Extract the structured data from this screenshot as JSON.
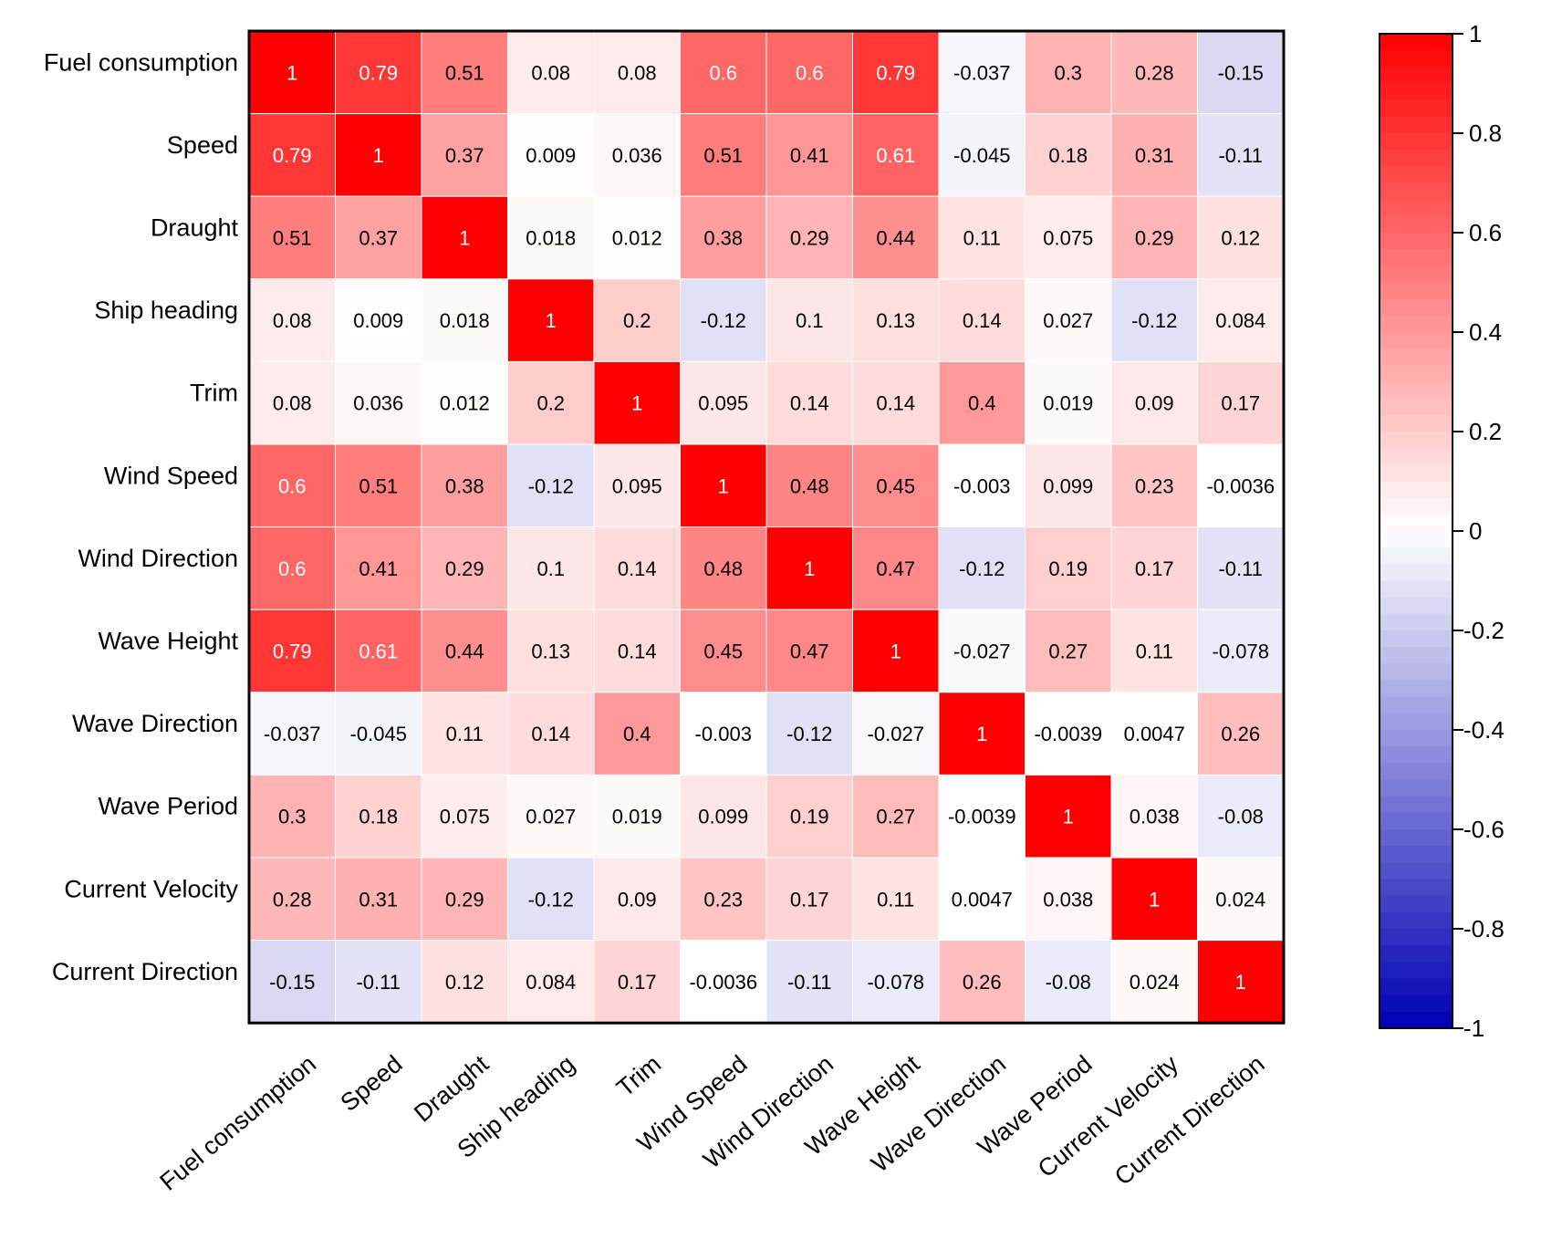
{
  "chart_data": {
    "type": "heatmap",
    "title": "",
    "xlabel": "",
    "ylabel": "",
    "variables": [
      "Fuel consumption",
      "Speed",
      "Draught",
      "Ship heading",
      "Trim",
      "Wind Speed",
      "Wind Direction",
      "Wave Height",
      "Wave Direction",
      "Wave Period",
      "Current Velocity",
      "Current Direction"
    ],
    "values": [
      [
        1,
        0.79,
        0.51,
        0.08,
        0.08,
        0.6,
        0.6,
        0.79,
        -0.037,
        0.3,
        0.28,
        -0.15
      ],
      [
        0.79,
        1,
        0.37,
        0.009,
        0.036,
        0.51,
        0.41,
        0.61,
        -0.045,
        0.18,
        0.31,
        -0.11
      ],
      [
        0.51,
        0.37,
        1,
        0.018,
        0.012,
        0.38,
        0.29,
        0.44,
        0.11,
        0.075,
        0.29,
        0.12
      ],
      [
        0.08,
        0.009,
        0.018,
        1,
        0.2,
        -0.12,
        0.1,
        0.13,
        0.14,
        0.027,
        -0.12,
        0.084
      ],
      [
        0.08,
        0.036,
        0.012,
        0.2,
        1,
        0.095,
        0.14,
        0.14,
        0.4,
        0.019,
        0.09,
        0.17
      ],
      [
        0.6,
        0.51,
        0.38,
        -0.12,
        0.095,
        1,
        0.48,
        0.45,
        -0.003,
        0.099,
        0.23,
        -0.0036
      ],
      [
        0.6,
        0.41,
        0.29,
        0.1,
        0.14,
        0.48,
        1,
        0.47,
        -0.12,
        0.19,
        0.17,
        -0.11
      ],
      [
        0.79,
        0.61,
        0.44,
        0.13,
        0.14,
        0.45,
        0.47,
        1,
        -0.027,
        0.27,
        0.11,
        -0.078
      ],
      [
        -0.037,
        -0.045,
        0.11,
        0.14,
        0.4,
        -0.003,
        -0.12,
        -0.027,
        1,
        -0.0039,
        0.0047,
        0.26
      ],
      [
        0.3,
        0.18,
        0.075,
        0.027,
        0.019,
        0.099,
        0.19,
        0.27,
        -0.0039,
        1,
        0.038,
        -0.08
      ],
      [
        0.28,
        0.31,
        0.29,
        -0.12,
        0.09,
        0.23,
        0.17,
        0.11,
        0.0047,
        0.038,
        1,
        0.024
      ],
      [
        -0.15,
        -0.11,
        0.12,
        0.084,
        0.17,
        -0.0036,
        -0.11,
        -0.078,
        0.26,
        -0.08,
        0.024,
        1
      ]
    ],
    "colorbar": {
      "range": [
        -1,
        1
      ],
      "ticks": [
        1,
        0.8,
        0.6,
        0.4,
        0.2,
        0,
        -0.2,
        -0.4,
        -0.6,
        -0.8,
        -1
      ],
      "tick_labels": [
        "1",
        "0.8",
        "0.6",
        "0.4",
        "0.2",
        "0",
        "-0.2",
        "-0.4",
        "-0.6",
        "-0.8",
        "-1"
      ],
      "colors": {
        "positive": "#ff0000",
        "zero": "#ffffff",
        "negative": "#0000b4"
      },
      "placement": "right"
    },
    "grid": true,
    "legend": "none"
  }
}
